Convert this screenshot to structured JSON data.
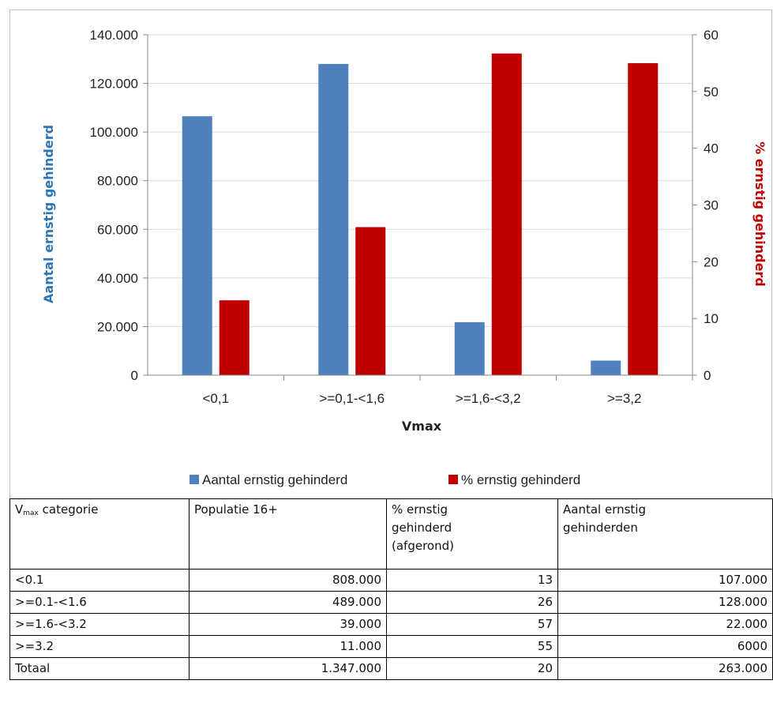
{
  "chart_data": {
    "type": "bar",
    "categories": [
      "<0,1",
      ">=0,1-<1,6",
      ">=1,6-<3,2",
      ">=3,2"
    ],
    "series": [
      {
        "name": "Aantal ernstig gehinderd",
        "axis": "left",
        "color": "#4f81bd",
        "values": [
          106500,
          128000,
          21800,
          6000
        ]
      },
      {
        "name": "% ernstig gehinderd",
        "axis": "right",
        "color": "#c00000",
        "values": [
          13.2,
          26.1,
          56.7,
          55.0
        ]
      }
    ],
    "xlabel": "Vmax",
    "ylabel": "Aantal ernstig gehinderd",
    "ylabel_right": "% ernstig gehinderd",
    "ylim": [
      0,
      140000
    ],
    "ylim_right": [
      0,
      60
    ],
    "yticks": [
      0,
      20000,
      40000,
      60000,
      80000,
      100000,
      120000,
      140000
    ],
    "ytick_labels": [
      "0",
      "20.000",
      "40.000",
      "60.000",
      "80.000",
      "100.000",
      "120.000",
      "140.000"
    ],
    "yticks_right": [
      0,
      10,
      20,
      30,
      40,
      50,
      60
    ],
    "ytick_labels_right": [
      "0",
      "10",
      "20",
      "30",
      "40",
      "50",
      "60"
    ],
    "grid": true,
    "legend": "bottom"
  },
  "table": {
    "header": {
      "col1_main": "V",
      "col1_sub": "max",
      "col1_rest": " categorie",
      "col2": "Populatie 16+",
      "col3_line1": "% ernstig",
      "col3_line2": "gehinderd",
      "col3_line3": "(afgerond)",
      "col4_line1": "Aantal ernstig",
      "col4_line2": "gehinderden"
    },
    "rows": [
      {
        "cat": "<0.1",
        "pop": "808.000",
        "pct": "13",
        "count": "107.000"
      },
      {
        "cat": ">=0.1-<1.6",
        "pop": "489.000",
        "pct": "26",
        "count": "128.000"
      },
      {
        "cat": ">=1.6-<3.2",
        "pop": "39.000",
        "pct": "57",
        "count": "22.000"
      },
      {
        "cat": ">=3.2",
        "pop": "11.000",
        "pct": "55",
        "count": "6000"
      },
      {
        "cat": "Totaal",
        "pop": "1.347.000",
        "pct": "20",
        "count": "263.000"
      }
    ]
  }
}
